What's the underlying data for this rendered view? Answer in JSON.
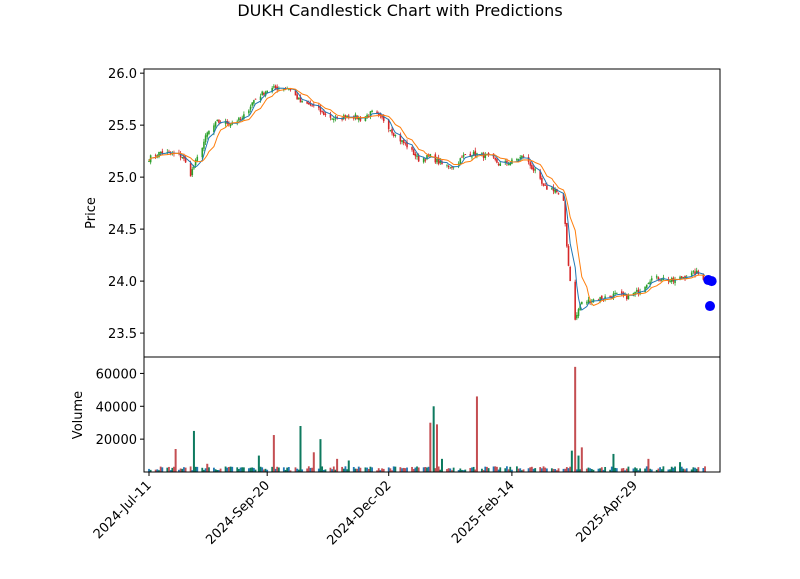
{
  "chart_data": {
    "type": "candlestick",
    "title": "DUKH Candlestick Chart with Predictions",
    "price_panel": {
      "ylabel": "Price",
      "ylim": [
        23.27,
        26.04
      ],
      "yticks": [
        23.5,
        24.0,
        24.5,
        25.0,
        25.5,
        26.0
      ],
      "ytick_labels": [
        "23.5",
        "24.0",
        "24.5",
        "25.0",
        "25.5",
        "26.0"
      ],
      "ma_short_color": "#1f77b4",
      "ma_long_color": "#ff7f0e",
      "up_color": "#2ca02c",
      "down_color": "#d62728",
      "predictions": [
        {
          "date": "2025-06-12",
          "value": 24.01
        },
        {
          "date": "2025-06-13",
          "value": 23.76
        },
        {
          "date": "2025-06-14",
          "value": 24.0
        }
      ],
      "prediction_color": "#0000ff"
    },
    "volume_panel": {
      "ylabel": "Volume",
      "ylim": [
        0,
        70000
      ],
      "yticks": [
        20000,
        40000,
        60000
      ],
      "ytick_labels": [
        "20000",
        "40000",
        "60000"
      ],
      "bar_color": "#1f77b4",
      "up_color": "#0e7a5f",
      "down_color": "#c44e52"
    },
    "x_axis": {
      "range": [
        "2024-07-08",
        "2025-06-19"
      ],
      "ticks": [
        "2024-07-11",
        "2024-09-20",
        "2024-12-02",
        "2025-02-14",
        "2025-04-29"
      ],
      "tick_labels": [
        "2024-Jul-11",
        "2024-Sep-20",
        "2024-Dec-02",
        "2025-Feb-14",
        "2025-Apr-29"
      ]
    },
    "price_anchors": [
      [
        "2024-07-11",
        25.18
      ],
      [
        "2024-07-18",
        25.24
      ],
      [
        "2024-07-25",
        25.22
      ],
      [
        "2024-07-31",
        25.2
      ],
      [
        "2024-08-05",
        25.03
      ],
      [
        "2024-08-09",
        25.18
      ],
      [
        "2024-08-15",
        25.42
      ],
      [
        "2024-08-21",
        25.53
      ],
      [
        "2024-08-28",
        25.52
      ],
      [
        "2024-09-05",
        25.56
      ],
      [
        "2024-09-12",
        25.74
      ],
      [
        "2024-09-20",
        25.84
      ],
      [
        "2024-09-27",
        25.86
      ],
      [
        "2024-10-03",
        25.86
      ],
      [
        "2024-10-10",
        25.72
      ],
      [
        "2024-10-18",
        25.68
      ],
      [
        "2024-10-25",
        25.6
      ],
      [
        "2024-11-01",
        25.55
      ],
      [
        "2024-11-08",
        25.6
      ],
      [
        "2024-11-15",
        25.56
      ],
      [
        "2024-11-22",
        25.62
      ],
      [
        "2024-11-29",
        25.55
      ],
      [
        "2024-12-06",
        25.4
      ],
      [
        "2024-12-13",
        25.3
      ],
      [
        "2024-12-20",
        25.17
      ],
      [
        "2024-12-27",
        25.2
      ],
      [
        "2025-01-03",
        25.12
      ],
      [
        "2025-01-10",
        25.1
      ],
      [
        "2025-01-17",
        25.22
      ],
      [
        "2025-01-24",
        25.22
      ],
      [
        "2025-01-31",
        25.2
      ],
      [
        "2025-02-07",
        25.12
      ],
      [
        "2025-02-14",
        25.15
      ],
      [
        "2025-02-21",
        25.2
      ],
      [
        "2025-02-28",
        25.05
      ],
      [
        "2025-03-05",
        24.9
      ],
      [
        "2025-03-12",
        24.88
      ],
      [
        "2025-03-17",
        24.75
      ],
      [
        "2025-03-20",
        24.15
      ],
      [
        "2025-03-24",
        23.62
      ],
      [
        "2025-03-27",
        23.78
      ],
      [
        "2025-04-03",
        23.82
      ],
      [
        "2025-04-10",
        23.84
      ],
      [
        "2025-04-17",
        23.87
      ],
      [
        "2025-04-24",
        23.85
      ],
      [
        "2025-05-01",
        23.9
      ],
      [
        "2025-05-08",
        24.02
      ],
      [
        "2025-05-15",
        24.03
      ],
      [
        "2025-05-22",
        24.0
      ],
      [
        "2025-05-29",
        24.05
      ],
      [
        "2025-06-05",
        24.08
      ],
      [
        "2025-06-10",
        24.02
      ]
    ],
    "volume_spikes": [
      [
        "2024-07-27",
        14000
      ],
      [
        "2024-08-07",
        25000
      ],
      [
        "2024-08-15",
        5000
      ],
      [
        "2024-09-15",
        10000
      ],
      [
        "2024-09-24",
        22500
      ],
      [
        "2024-10-10",
        28000
      ],
      [
        "2024-10-18",
        12000
      ],
      [
        "2024-10-22",
        20000
      ],
      [
        "2024-11-01",
        8000
      ],
      [
        "2024-11-08",
        7000
      ],
      [
        "2024-12-27",
        30000
      ],
      [
        "2024-12-29",
        40000
      ],
      [
        "2024-12-31",
        29000
      ],
      [
        "2025-01-03",
        8000
      ],
      [
        "2025-01-24",
        46000
      ],
      [
        "2025-03-22",
        13000
      ],
      [
        "2025-03-24",
        64000
      ],
      [
        "2025-03-26",
        10000
      ],
      [
        "2025-03-28",
        15000
      ],
      [
        "2025-04-16",
        11000
      ],
      [
        "2025-05-07",
        8000
      ],
      [
        "2025-05-26",
        6000
      ]
    ]
  }
}
